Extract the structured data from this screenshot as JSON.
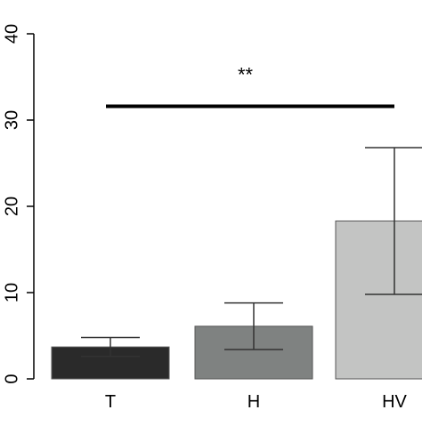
{
  "chart_data": {
    "type": "bar",
    "categories": [
      "T",
      "H",
      "HV"
    ],
    "values": [
      3.7,
      6.1,
      18.3
    ],
    "error_upper": [
      4.8,
      8.8,
      26.8
    ],
    "error_lower": [
      2.6,
      3.4,
      9.8
    ],
    "bar_colors": [
      "#2a2a2a",
      "#7f8281",
      "#c3c4c3"
    ],
    "ylim": [
      0,
      40
    ],
    "yticks": [
      "0",
      "10",
      "20",
      "30",
      "40"
    ],
    "xlabel": "",
    "ylabel": "",
    "grid": false,
    "annotation": {
      "text": "**",
      "from_category": "T",
      "to_category": "HV",
      "y": 31.6
    }
  }
}
